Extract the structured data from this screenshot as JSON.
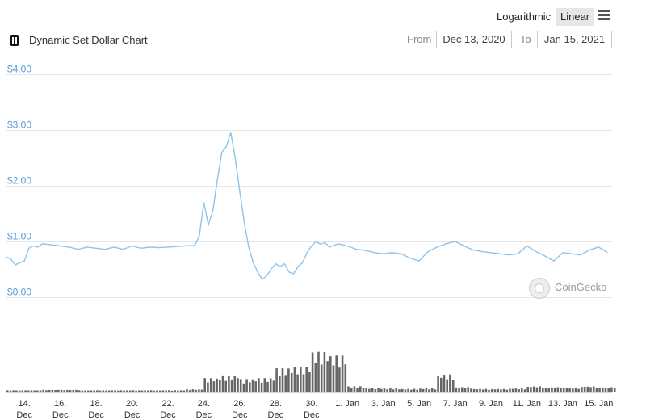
{
  "toolbar": {
    "logarithmic_label": "Logarithmic",
    "linear_label": "Linear",
    "active_scale": "Linear"
  },
  "header": {
    "title": "Dynamic Set Dollar Chart",
    "from_label": "From",
    "from_value": "Dec 13, 2020",
    "to_label": "To",
    "to_value": "Jan 15, 2021"
  },
  "watermark": {
    "text": "CoinGecko"
  },
  "colors": {
    "price_line": "#8cc4eb",
    "y_labels": "#5a9bd5",
    "volume": "#666666",
    "grid": "#e6e6e6"
  },
  "chart_data": {
    "type": "line",
    "title": "Dynamic Set Dollar Chart",
    "y_axis": {
      "min": 0,
      "max": 4,
      "ticks": [
        0,
        1,
        2,
        3,
        4
      ],
      "tick_labels": [
        "$0.00",
        "$1.00",
        "$2.00",
        "$3.00",
        "$4.00"
      ]
    },
    "x_axis": {
      "start": "2020-12-13",
      "end": "2021-01-15",
      "ticks": [
        {
          "date": "2020-12-14",
          "label1": "14.",
          "label2": "Dec"
        },
        {
          "date": "2020-12-16",
          "label1": "16.",
          "label2": "Dec"
        },
        {
          "date": "2020-12-18",
          "label1": "18.",
          "label2": "Dec"
        },
        {
          "date": "2020-12-20",
          "label1": "20.",
          "label2": "Dec"
        },
        {
          "date": "2020-12-22",
          "label1": "22.",
          "label2": "Dec"
        },
        {
          "date": "2020-12-24",
          "label1": "24.",
          "label2": "Dec"
        },
        {
          "date": "2020-12-26",
          "label1": "26.",
          "label2": "Dec"
        },
        {
          "date": "2020-12-28",
          "label1": "28.",
          "label2": "Dec"
        },
        {
          "date": "2020-12-30",
          "label1": "30.",
          "label2": "Dec"
        },
        {
          "date": "2021-01-01",
          "label1": "1. Jan",
          "label2": ""
        },
        {
          "date": "2021-01-03",
          "label1": "3. Jan",
          "label2": ""
        },
        {
          "date": "2021-01-05",
          "label1": "5. Jan",
          "label2": ""
        },
        {
          "date": "2021-01-07",
          "label1": "7. Jan",
          "label2": ""
        },
        {
          "date": "2021-01-09",
          "label1": "9. Jan",
          "label2": ""
        },
        {
          "date": "2021-01-11",
          "label1": "11. Jan",
          "label2": ""
        },
        {
          "date": "2021-01-13",
          "label1": "13. Jan",
          "label2": ""
        },
        {
          "date": "2021-01-15",
          "label1": "15. Jan",
          "label2": ""
        }
      ]
    },
    "series": [
      {
        "type": "line",
        "points": [
          [
            "2020-12-13 00:00",
            0.72
          ],
          [
            "2020-12-13 06:00",
            0.68
          ],
          [
            "2020-12-13 12:00",
            0.58
          ],
          [
            "2020-12-13 18:00",
            0.62
          ],
          [
            "2020-12-14 00:00",
            0.65
          ],
          [
            "2020-12-14 06:00",
            0.88
          ],
          [
            "2020-12-14 12:00",
            0.92
          ],
          [
            "2020-12-14 18:00",
            0.9
          ],
          [
            "2020-12-15 00:00",
            0.96
          ],
          [
            "2020-12-15 12:00",
            0.94
          ],
          [
            "2020-12-16 00:00",
            0.92
          ],
          [
            "2020-12-16 12:00",
            0.9
          ],
          [
            "2020-12-17 00:00",
            0.86
          ],
          [
            "2020-12-17 12:00",
            0.9
          ],
          [
            "2020-12-18 00:00",
            0.88
          ],
          [
            "2020-12-18 12:00",
            0.86
          ],
          [
            "2020-12-19 00:00",
            0.9
          ],
          [
            "2020-12-19 12:00",
            0.86
          ],
          [
            "2020-12-20 00:00",
            0.92
          ],
          [
            "2020-12-20 12:00",
            0.88
          ],
          [
            "2020-12-21 00:00",
            0.9
          ],
          [
            "2020-12-21 12:00",
            0.89
          ],
          [
            "2020-12-22 00:00",
            0.9
          ],
          [
            "2020-12-22 12:00",
            0.91
          ],
          [
            "2020-12-23 00:00",
            0.92
          ],
          [
            "2020-12-23 12:00",
            0.93
          ],
          [
            "2020-12-23 18:00",
            1.1
          ],
          [
            "2020-12-24 00:00",
            1.7
          ],
          [
            "2020-12-24 06:00",
            1.3
          ],
          [
            "2020-12-24 12:00",
            1.55
          ],
          [
            "2020-12-24 18:00",
            2.1
          ],
          [
            "2020-12-25 00:00",
            2.6
          ],
          [
            "2020-12-25 06:00",
            2.7
          ],
          [
            "2020-12-25 12:00",
            2.95
          ],
          [
            "2020-12-25 18:00",
            2.5
          ],
          [
            "2020-12-26 00:00",
            1.9
          ],
          [
            "2020-12-26 06:00",
            1.35
          ],
          [
            "2020-12-26 12:00",
            0.9
          ],
          [
            "2020-12-26 18:00",
            0.62
          ],
          [
            "2020-12-27 00:00",
            0.45
          ],
          [
            "2020-12-27 06:00",
            0.32
          ],
          [
            "2020-12-27 12:00",
            0.38
          ],
          [
            "2020-12-27 18:00",
            0.5
          ],
          [
            "2020-12-28 00:00",
            0.6
          ],
          [
            "2020-12-28 06:00",
            0.55
          ],
          [
            "2020-12-28 12:00",
            0.6
          ],
          [
            "2020-12-28 18:00",
            0.45
          ],
          [
            "2020-12-29 00:00",
            0.42
          ],
          [
            "2020-12-29 06:00",
            0.55
          ],
          [
            "2020-12-29 12:00",
            0.62
          ],
          [
            "2020-12-29 18:00",
            0.8
          ],
          [
            "2020-12-30 00:00",
            0.92
          ],
          [
            "2020-12-30 06:00",
            1.0
          ],
          [
            "2020-12-30 12:00",
            0.95
          ],
          [
            "2020-12-30 18:00",
            0.98
          ],
          [
            "2020-12-31 00:00",
            0.9
          ],
          [
            "2020-12-31 12:00",
            0.96
          ],
          [
            "2021-01-01 00:00",
            0.92
          ],
          [
            "2021-01-01 12:00",
            0.86
          ],
          [
            "2021-01-02 00:00",
            0.84
          ],
          [
            "2021-01-02 12:00",
            0.8
          ],
          [
            "2021-01-03 00:00",
            0.78
          ],
          [
            "2021-01-03 12:00",
            0.8
          ],
          [
            "2021-01-04 00:00",
            0.78
          ],
          [
            "2021-01-04 12:00",
            0.7
          ],
          [
            "2021-01-05 00:00",
            0.65
          ],
          [
            "2021-01-05 12:00",
            0.82
          ],
          [
            "2021-01-06 00:00",
            0.9
          ],
          [
            "2021-01-06 12:00",
            0.96
          ],
          [
            "2021-01-07 00:00",
            1.0
          ],
          [
            "2021-01-07 12:00",
            0.92
          ],
          [
            "2021-01-08 00:00",
            0.85
          ],
          [
            "2021-01-08 12:00",
            0.82
          ],
          [
            "2021-01-09 00:00",
            0.8
          ],
          [
            "2021-01-09 12:00",
            0.78
          ],
          [
            "2021-01-10 00:00",
            0.76
          ],
          [
            "2021-01-10 12:00",
            0.78
          ],
          [
            "2021-01-11 00:00",
            0.92
          ],
          [
            "2021-01-11 12:00",
            0.82
          ],
          [
            "2021-01-12 00:00",
            0.74
          ],
          [
            "2021-01-12 12:00",
            0.65
          ],
          [
            "2021-01-13 00:00",
            0.8
          ],
          [
            "2021-01-13 12:00",
            0.78
          ],
          [
            "2021-01-14 00:00",
            0.76
          ],
          [
            "2021-01-14 12:00",
            0.85
          ],
          [
            "2021-01-15 00:00",
            0.9
          ],
          [
            "2021-01-15 12:00",
            0.8
          ]
        ]
      },
      {
        "type": "volume",
        "points": [
          [
            "2020-12-13",
            0.03
          ],
          [
            "2020-12-14",
            0.03
          ],
          [
            "2020-12-15",
            0.04
          ],
          [
            "2020-12-16",
            0.04
          ],
          [
            "2020-12-17",
            0.03
          ],
          [
            "2020-12-18",
            0.03
          ],
          [
            "2020-12-19",
            0.03
          ],
          [
            "2020-12-20",
            0.03
          ],
          [
            "2020-12-21",
            0.03
          ],
          [
            "2020-12-22",
            0.03
          ],
          [
            "2020-12-23",
            0.05
          ],
          [
            "2020-12-24",
            0.3
          ],
          [
            "2020-12-25",
            0.36
          ],
          [
            "2020-12-26",
            0.28
          ],
          [
            "2020-12-27",
            0.3
          ],
          [
            "2020-12-28",
            0.52
          ],
          [
            "2020-12-29",
            0.55
          ],
          [
            "2020-12-30",
            0.88
          ],
          [
            "2020-12-31",
            0.8
          ],
          [
            "2021-01-01",
            0.12
          ],
          [
            "2021-01-02",
            0.08
          ],
          [
            "2021-01-03",
            0.07
          ],
          [
            "2021-01-04",
            0.06
          ],
          [
            "2021-01-05",
            0.07
          ],
          [
            "2021-01-06",
            0.38
          ],
          [
            "2021-01-07",
            0.1
          ],
          [
            "2021-01-08",
            0.06
          ],
          [
            "2021-01-09",
            0.06
          ],
          [
            "2021-01-10",
            0.07
          ],
          [
            "2021-01-11",
            0.12
          ],
          [
            "2021-01-12",
            0.1
          ],
          [
            "2021-01-13",
            0.08
          ],
          [
            "2021-01-14",
            0.12
          ],
          [
            "2021-01-15",
            0.1
          ]
        ]
      }
    ]
  }
}
